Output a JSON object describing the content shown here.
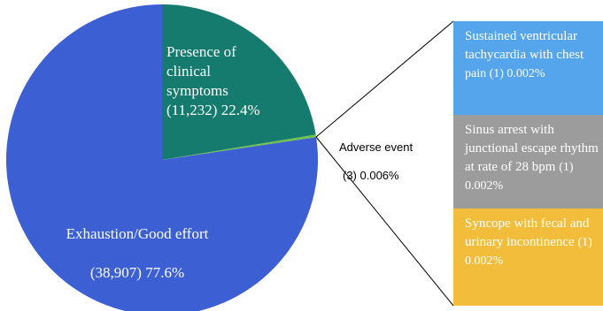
{
  "chart_data": {
    "type": "pie",
    "slices": [
      {
        "label": "Exhaustion/Good effort",
        "count": "(38,907)",
        "percent": "77.6%",
        "value": 77.6,
        "color": "#3c5fd3"
      },
      {
        "label": "Presence of clinical symptoms",
        "count": "(11,232)",
        "percent": "22.4%",
        "value": 22.4,
        "color": "#157b6e"
      },
      {
        "label": "Adverse event",
        "count": "(3)",
        "percent": "0.006%",
        "value": 0.006,
        "color": "#6ec24c"
      }
    ],
    "breakdown": {
      "parent": "Adverse event",
      "items": [
        {
          "label": "Sustained ventricular tachycardia with  chest pain",
          "count": "(1)",
          "percent": "0.002%",
          "color": "#55a5ec"
        },
        {
          "label": "Sinus arrest with junctional escape rhythm at rate of 28 bpm",
          "count": "(1)",
          "percent": "0.002%",
          "color": "#9c9c9c"
        },
        {
          "label": "Syncope with fecal and urinary incontinence",
          "count": "(1)",
          "percent": "0.002%",
          "color": "#f1bd3a"
        }
      ]
    }
  },
  "labels": {
    "exhaustion_line1": "Exhaustion/Good effort",
    "exhaustion_line2": "(38,907) 77.6%",
    "clinical_text": "Presence of\nclinical\nsymptoms\n(11,232) 22.4%",
    "adverse_line1": "Adverse event",
    "adverse_line2": "(3) 0.006%",
    "box1_text": "Sustained ventricular tachycardia with  chest",
    "box1_count": "pain  (1) 0.002%",
    "box2_text": "Sinus arrest with junctional escape rhythm at rate of 28 bpm",
    "box2_count": "(1) 0.002%",
    "box3_text": "Syncope with fecal and urinary incontinence",
    "box3_count": "(1) 0.002%"
  }
}
